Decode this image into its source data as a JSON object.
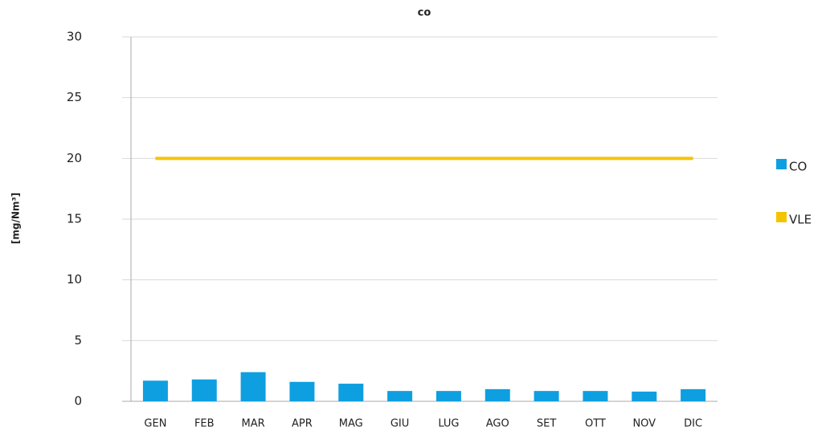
{
  "chart_data": {
    "type": "bar",
    "title": "co",
    "y_label": "[mg/Nm³]",
    "categories": [
      "GEN",
      "FEB",
      "MAR",
      "APR",
      "MAG",
      "GIU",
      "LUG",
      "AGO",
      "SET",
      "OTT",
      "NOV",
      "DIC"
    ],
    "series": [
      {
        "name": "CO",
        "color": "#0e9fe0",
        "values": [
          1.7,
          1.8,
          2.4,
          1.6,
          1.45,
          0.85,
          0.85,
          1.0,
          0.85,
          0.85,
          0.8,
          1.0
        ]
      },
      {
        "name": "VLE",
        "type": "line",
        "color": "#f5c400",
        "values": [
          20,
          20,
          20,
          20,
          20,
          20,
          20,
          20,
          20,
          20,
          20,
          20
        ]
      }
    ],
    "ylim": [
      0,
      30
    ],
    "yticks": [
      0,
      5,
      10,
      15,
      20,
      25,
      30
    ],
    "grid": true,
    "legend": "right"
  }
}
